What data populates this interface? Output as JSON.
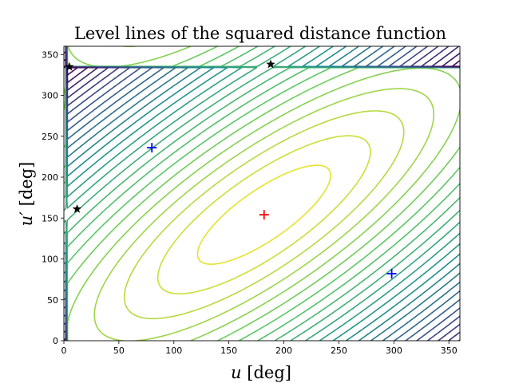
{
  "chart_data": {
    "type": "contour",
    "title": "Level lines of the squared distance function",
    "xlabel_var": "u",
    "xlabel_unit": "[deg]",
    "ylabel_var": "u′",
    "ylabel_unit": "[deg]",
    "xlim": [
      0,
      360
    ],
    "ylim": [
      0,
      360
    ],
    "xticks": [
      0,
      50,
      100,
      150,
      200,
      250,
      300,
      350
    ],
    "yticks": [
      0,
      50,
      100,
      150,
      200,
      250,
      300,
      350
    ],
    "grid": false,
    "colormap": [
      "#440154",
      "#3b528b",
      "#21918c",
      "#5ec962",
      "#fde725"
    ],
    "contour_center": {
      "x": 182,
      "y": 154
    },
    "contour_levels": 26,
    "markers": [
      {
        "type": "plus",
        "color": "#ff0000",
        "x": 182,
        "y": 154
      },
      {
        "type": "plus",
        "color": "#0000ff",
        "x": 80,
        "y": 236
      },
      {
        "type": "plus",
        "color": "#0000ff",
        "x": 298,
        "y": 82
      },
      {
        "type": "star",
        "color": "#000000",
        "x": 5,
        "y": 335
      },
      {
        "type": "star",
        "color": "#000000",
        "x": 12,
        "y": 161
      },
      {
        "type": "star",
        "color": "#000000",
        "x": 188,
        "y": 338
      }
    ]
  }
}
